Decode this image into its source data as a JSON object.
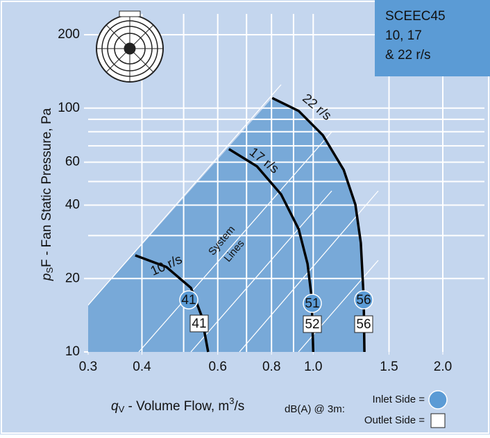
{
  "chart_data": {
    "type": "line",
    "title_lines": [
      "SCEEC45",
      "10, 17",
      "& 22 r/s"
    ],
    "x_label": [
      "q",
      "V",
      " - Volume Flow, m",
      "3",
      "/s"
    ],
    "y_label": [
      "p",
      "S",
      "F - Fan Static Pressure, Pa"
    ],
    "annotations": [
      "System",
      "Lines"
    ],
    "db_note": "dB(A) @ 3m:",
    "legend": [
      "Inlet Side =",
      "Outlet Side ="
    ],
    "log_x": true,
    "log_y": true,
    "grid": true,
    "xlim": [
      0.3,
      2.0
    ],
    "ylim": [
      10,
      200
    ],
    "xticks": [
      0.3,
      0.4,
      0.6,
      0.8,
      {
        "value": 1.0,
        "label": "1.0"
      },
      1.5,
      {
        "value": 2.0,
        "label": "2.0"
      }
    ],
    "yticks": [
      10,
      20,
      40,
      60,
      100,
      200
    ],
    "xgrid": [
      0.4,
      0.5,
      0.6,
      0.7,
      0.8,
      0.9,
      1.0,
      1.5,
      2.0
    ],
    "ygrid": [
      20,
      30,
      40,
      50,
      60,
      70,
      80,
      90,
      100,
      200
    ],
    "series": [
      {
        "name": "10 r/s",
        "color": "#000000",
        "inlet_db": "41",
        "outlet_db": "41",
        "x": [
          0.386,
          0.456,
          0.52,
          0.55,
          0.57
        ],
        "values": [
          24.9,
          22.3,
          18.3,
          14.1,
          10
        ]
      },
      {
        "name": "17 r/s",
        "color": "#000000",
        "inlet_db": "51",
        "outlet_db": "52",
        "x": [
          0.637,
          0.74,
          0.842,
          0.925,
          0.97,
          0.992,
          1.0
        ],
        "values": [
          67.9,
          57.7,
          44.3,
          31.9,
          23.0,
          16.6,
          10
        ]
      },
      {
        "name": "22 r/s",
        "color": "#000000",
        "inlet_db": "56",
        "outlet_db": "56",
        "x": [
          0.803,
          0.925,
          1.053,
          1.177,
          1.253,
          1.29,
          1.31,
          1.315
        ],
        "values": [
          110,
          97.4,
          77.4,
          55.8,
          40.2,
          28.0,
          16.6,
          10
        ]
      }
    ]
  }
}
